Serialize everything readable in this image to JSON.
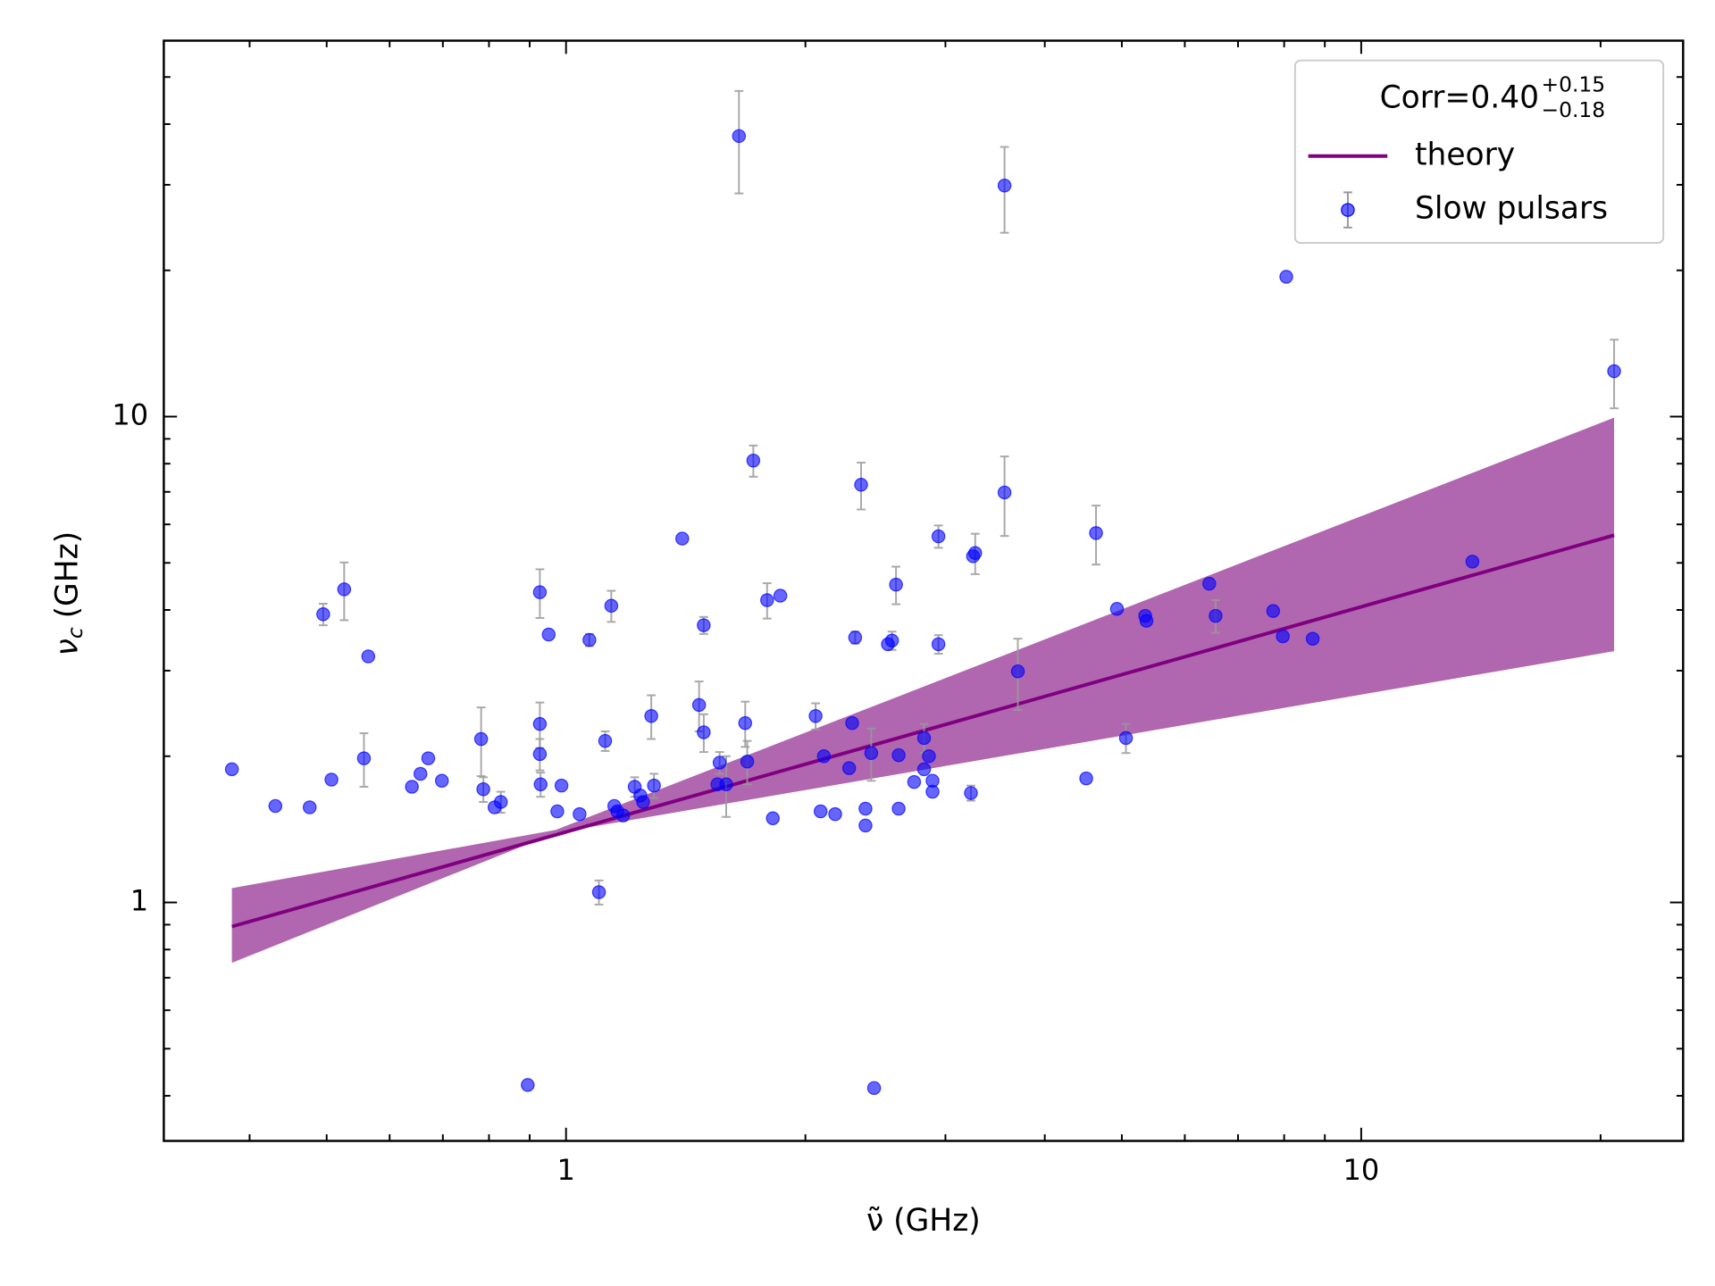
{
  "chart_data": {
    "type": "scatter",
    "x_label": "ν̃ (GHz)",
    "y_label": {
      "symbol": "ν",
      "sub": "c",
      "unit": "(GHz)"
    },
    "x_log": true,
    "y_log": true,
    "xlim": [
      0.312,
      25.4
    ],
    "ylim": [
      0.323,
      59.4
    ],
    "xticks": [
      1,
      10
    ],
    "yticks": [
      1,
      10
    ],
    "xminor": [
      0.4,
      0.5,
      0.6,
      0.7,
      0.8,
      0.9,
      2,
      3,
      4,
      5,
      6,
      7,
      8,
      9,
      20
    ],
    "yminor": [
      0.4,
      0.5,
      0.6,
      0.7,
      0.8,
      0.9,
      2,
      3,
      4,
      5,
      6,
      7,
      8,
      9,
      20,
      30,
      40,
      50
    ],
    "legend_position": "upper right",
    "legend_title": {
      "text": "Corr=0.40",
      "sup": "+0.15",
      "sub": "−0.18"
    },
    "series": [
      {
        "name": "theory",
        "type": "line",
        "color": "#800080",
        "x": [
          0.38,
          20.8
        ],
        "y": [
          0.892,
          5.7
        ],
        "band": {
          "color": "#b067b0",
          "x": [
            0.38,
            0.97,
            20.8
          ],
          "upper": [
            1.07,
            1.41,
            9.95
          ],
          "lower": [
            0.751,
            1.39,
            3.29
          ]
        }
      },
      {
        "name": "Slow pulsars",
        "type": "errorbar",
        "color": "#0000ff",
        "error_color": "#999999",
        "x": [
          0.38,
          0.431,
          0.476,
          0.495,
          0.507,
          0.526,
          0.557,
          0.564,
          0.64,
          0.656,
          0.671,
          0.698,
          0.782,
          0.787,
          0.813,
          0.828,
          0.895,
          0.927,
          0.927,
          0.927,
          0.929,
          0.951,
          0.975,
          0.987,
          1.04,
          1.07,
          1.1,
          1.12,
          1.14,
          1.15,
          1.16,
          1.18,
          1.22,
          1.24,
          1.25,
          1.28,
          1.29,
          1.4,
          1.47,
          1.49,
          1.49,
          1.56,
          1.55,
          1.59,
          1.65,
          1.68,
          1.69,
          1.72,
          1.79,
          1.82,
          1.86,
          2.06,
          2.09,
          2.11,
          2.18,
          2.27,
          2.29,
          2.31,
          2.35,
          2.38,
          2.38,
          2.42,
          2.44,
          2.54,
          2.57,
          2.6,
          2.62,
          2.62,
          2.74,
          2.82,
          2.82,
          2.86,
          2.89,
          2.89,
          2.94,
          2.94,
          3.23,
          3.25,
          3.27,
          3.56,
          3.56,
          3.7,
          4.51,
          4.64,
          4.93,
          5.06,
          5.35,
          5.37,
          6.44,
          6.56,
          7.75,
          7.97,
          8.05,
          8.69,
          13.8,
          20.8
        ],
        "y": [
          1.88,
          1.58,
          1.57,
          3.92,
          1.79,
          4.41,
          1.98,
          3.21,
          1.73,
          1.84,
          1.98,
          1.78,
          2.17,
          1.71,
          1.57,
          1.61,
          0.421,
          4.35,
          2.33,
          2.02,
          1.75,
          3.56,
          1.54,
          1.74,
          1.52,
          3.47,
          1.05,
          2.15,
          4.08,
          1.58,
          1.54,
          1.51,
          1.73,
          1.66,
          1.61,
          2.42,
          1.74,
          5.61,
          2.55,
          2.24,
          3.72,
          1.94,
          1.75,
          1.75,
          37.8,
          2.34,
          1.95,
          8.12,
          4.19,
          1.49,
          4.28,
          2.42,
          1.54,
          2.0,
          1.52,
          1.89,
          2.34,
          3.51,
          7.24,
          1.44,
          1.56,
          2.03,
          0.415,
          3.4,
          3.46,
          4.51,
          2.01,
          1.56,
          1.77,
          2.18,
          1.88,
          2.0,
          1.78,
          1.69,
          5.67,
          3.4,
          1.68,
          5.16,
          5.24,
          29.9,
          6.98,
          2.99,
          1.8,
          5.76,
          4.02,
          2.18,
          3.89,
          3.8,
          4.53,
          3.89,
          3.98,
          3.53,
          19.4,
          3.49,
          5.03,
          12.4
        ],
        "errors": [
          null,
          null,
          null,
          0.2,
          null,
          0.6,
          0.25,
          null,
          null,
          null,
          null,
          null,
          0.35,
          0.1,
          null,
          0.08,
          null,
          0.5,
          0.25,
          0.15,
          0.1,
          null,
          null,
          null,
          null,
          0.1,
          0.06,
          0.1,
          0.3,
          null,
          null,
          null,
          0.08,
          null,
          null,
          0.25,
          0.1,
          null,
          0.3,
          0.2,
          0.15,
          0.1,
          null,
          0.25,
          9,
          0.25,
          0.2,
          0.6,
          0.35,
          null,
          null,
          0.15,
          null,
          null,
          null,
          null,
          null,
          0.1,
          0.8,
          null,
          null,
          0.25,
          null,
          null,
          0.15,
          0.4,
          null,
          null,
          null,
          0.15,
          null,
          null,
          null,
          null,
          0.3,
          0.15,
          0.06,
          null,
          0.5,
          6,
          1.3,
          0.5,
          null,
          0.8,
          null,
          0.15,
          null,
          null,
          null,
          0.3,
          null,
          null,
          null,
          null,
          null,
          2
        ]
      }
    ]
  }
}
